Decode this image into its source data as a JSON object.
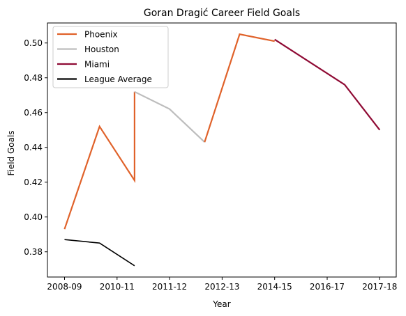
{
  "chart_data": {
    "type": "line",
    "title": "Goran Dragić Career Field Goals",
    "xlabel": "Year",
    "ylabel": "Field Goals",
    "x_ticks": [
      "2008-09",
      "2010-11",
      "2011-12",
      "2012-13",
      "2014-15",
      "2016-17",
      "2017-18"
    ],
    "y_ticks": [
      "0.38",
      "0.40",
      "0.42",
      "0.44",
      "0.46",
      "0.48",
      "0.50"
    ],
    "ylim": [
      0.3655,
      0.5115
    ],
    "grid": false,
    "legend_position": "top-left",
    "series": [
      {
        "name": "Phoenix",
        "color": "#e0622a",
        "points": [
          [
            0,
            0.393
          ],
          [
            1,
            0.452
          ],
          [
            2,
            0.421
          ],
          [
            2,
            0.472
          ]
        ]
      },
      {
        "name": "Houston",
        "color": "#bdbdbd",
        "points": [
          [
            2,
            0.472
          ],
          [
            3,
            0.462
          ],
          [
            4,
            0.443
          ]
        ]
      },
      {
        "name": "Phoenix",
        "color": "#e0622a",
        "points": [
          [
            4,
            0.443
          ],
          [
            5,
            0.505
          ],
          [
            6,
            0.501
          ]
        ]
      },
      {
        "name": "Miami",
        "color": "#8f0a34",
        "points": [
          [
            6,
            0.502
          ],
          [
            8,
            0.476
          ],
          [
            9,
            0.45
          ]
        ]
      },
      {
        "name": "League Average",
        "color": "#000000",
        "points": [
          [
            0,
            0.387
          ],
          [
            1,
            0.385
          ],
          [
            2,
            0.372
          ]
        ]
      }
    ],
    "legend": [
      {
        "name": "Phoenix",
        "color": "#e0622a"
      },
      {
        "name": "Houston",
        "color": "#bdbdbd"
      },
      {
        "name": "Miami",
        "color": "#8f0a34"
      },
      {
        "name": "League Average",
        "color": "#000000"
      }
    ]
  }
}
